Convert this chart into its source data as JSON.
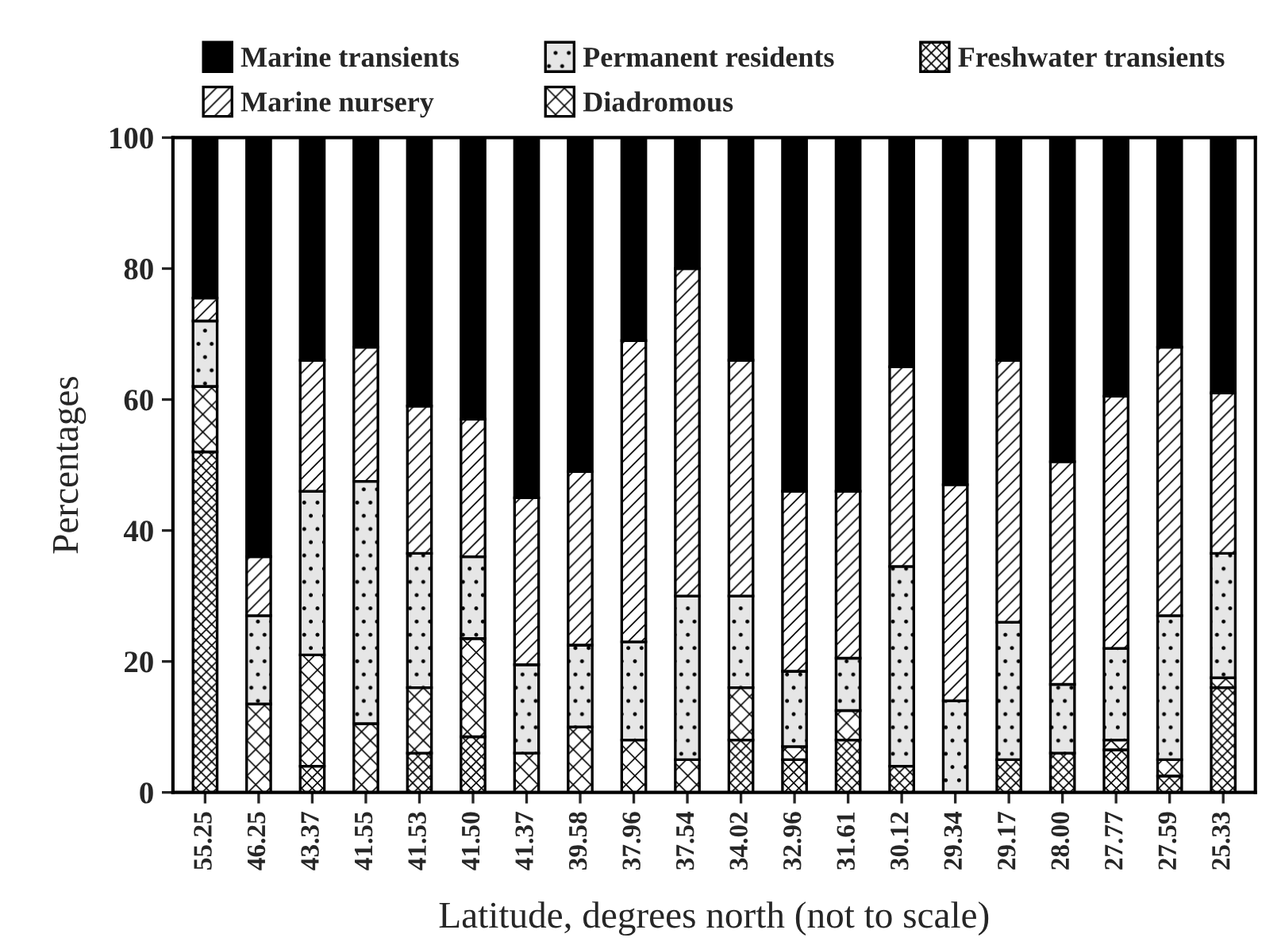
{
  "chart_data": {
    "type": "bar",
    "stacked": true,
    "xlabel": "Latitude, degrees north (not to scale)",
    "ylabel": "Percentages",
    "categories": [
      "55.25",
      "46.25",
      "43.37",
      "41.55",
      "41.53",
      "41.50",
      "41.37",
      "39.58",
      "37.96",
      "37.54",
      "34.02",
      "32.96",
      "31.61",
      "30.12",
      "29.34",
      "29.17",
      "28.00",
      "27.77",
      "27.59",
      "25.33"
    ],
    "series": [
      {
        "name": "Freshwater transients",
        "color": "#000000",
        "values": [
          52,
          0,
          4,
          0,
          6,
          8.5,
          0,
          0,
          0,
          0,
          8,
          5,
          8,
          4,
          0,
          5,
          6,
          6.5,
          2.5,
          16
        ]
      },
      {
        "name": "Diadromous",
        "color": "#000000",
        "values": [
          10,
          13.5,
          17,
          10.5,
          10,
          15,
          6,
          10,
          8,
          5,
          8,
          2,
          4.5,
          0,
          0,
          0,
          0,
          1.5,
          2.5,
          1.5
        ]
      },
      {
        "name": "Permanent residents",
        "color": "#000000",
        "values": [
          10,
          13.5,
          25,
          37,
          20.5,
          12.5,
          13.5,
          12.5,
          15,
          25,
          14,
          11.5,
          8,
          30.5,
          14,
          21,
          10.5,
          14,
          22,
          19
        ]
      },
      {
        "name": "Marine nursery",
        "color": "#000000",
        "values": [
          3.5,
          9,
          20,
          20.5,
          22.5,
          21,
          25.5,
          26.5,
          46,
          50,
          36,
          27.5,
          25.5,
          30.5,
          33,
          40,
          34,
          38.5,
          41,
          24.5
        ]
      },
      {
        "name": "Marine transients",
        "color": "#000000",
        "values": [
          24.5,
          64,
          34,
          32,
          41,
          43,
          55,
          51,
          31,
          20,
          34,
          54,
          54,
          35,
          53,
          34,
          49.5,
          39.5,
          32,
          39
        ]
      }
    ],
    "ylim": [
      0,
      100
    ],
    "yticks": [
      0,
      20,
      40,
      60,
      80,
      100
    ],
    "grid": false,
    "legend": "top"
  }
}
